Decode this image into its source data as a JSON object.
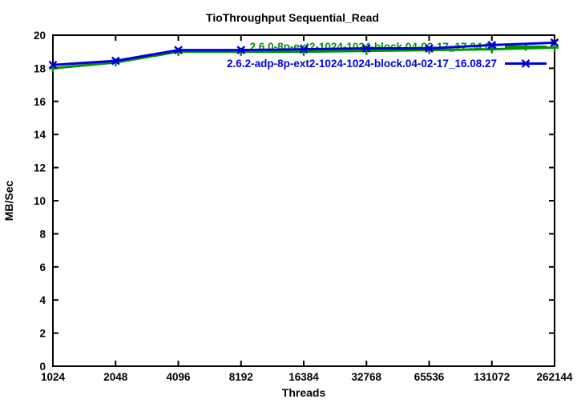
{
  "window": {
    "background": "#ffffff"
  },
  "chart_data": {
    "type": "line",
    "title": "TioThroughput Sequential_Read",
    "xlabel": "Threads",
    "ylabel": "MB/Sec",
    "x_scale": "log2",
    "grid": false,
    "legend_position": "top-right-inside",
    "border": true,
    "ticks_mirrored": true,
    "axis_color": "#000000",
    "ylim": [
      0,
      20
    ],
    "y_ticks": [
      0,
      2,
      4,
      6,
      8,
      10,
      12,
      14,
      16,
      18,
      20
    ],
    "categories": [
      1024,
      2048,
      4096,
      8192,
      16384,
      32768,
      65536,
      131072,
      262144
    ],
    "x_tick_labels": [
      "1024",
      "2048",
      "4096",
      "8192",
      "16384",
      "32768",
      "65536",
      "131072",
      "262144"
    ],
    "series": [
      {
        "name": "2.6.0-8p-ext2-1024-1024-block.04-02-17_17.34.08",
        "color": "#009000",
        "marker": "plus",
        "values": [
          18.0,
          18.35,
          19.0,
          19.0,
          19.0,
          19.05,
          19.1,
          19.15,
          19.25
        ]
      },
      {
        "name": "2.6.2-adp-8p-ext2-1024-1024-block.04-02-17_16.08.27",
        "color": "#0000d8",
        "marker": "cross",
        "values": [
          18.2,
          18.45,
          19.1,
          19.1,
          19.15,
          19.2,
          19.2,
          19.4,
          19.55
        ]
      }
    ]
  }
}
